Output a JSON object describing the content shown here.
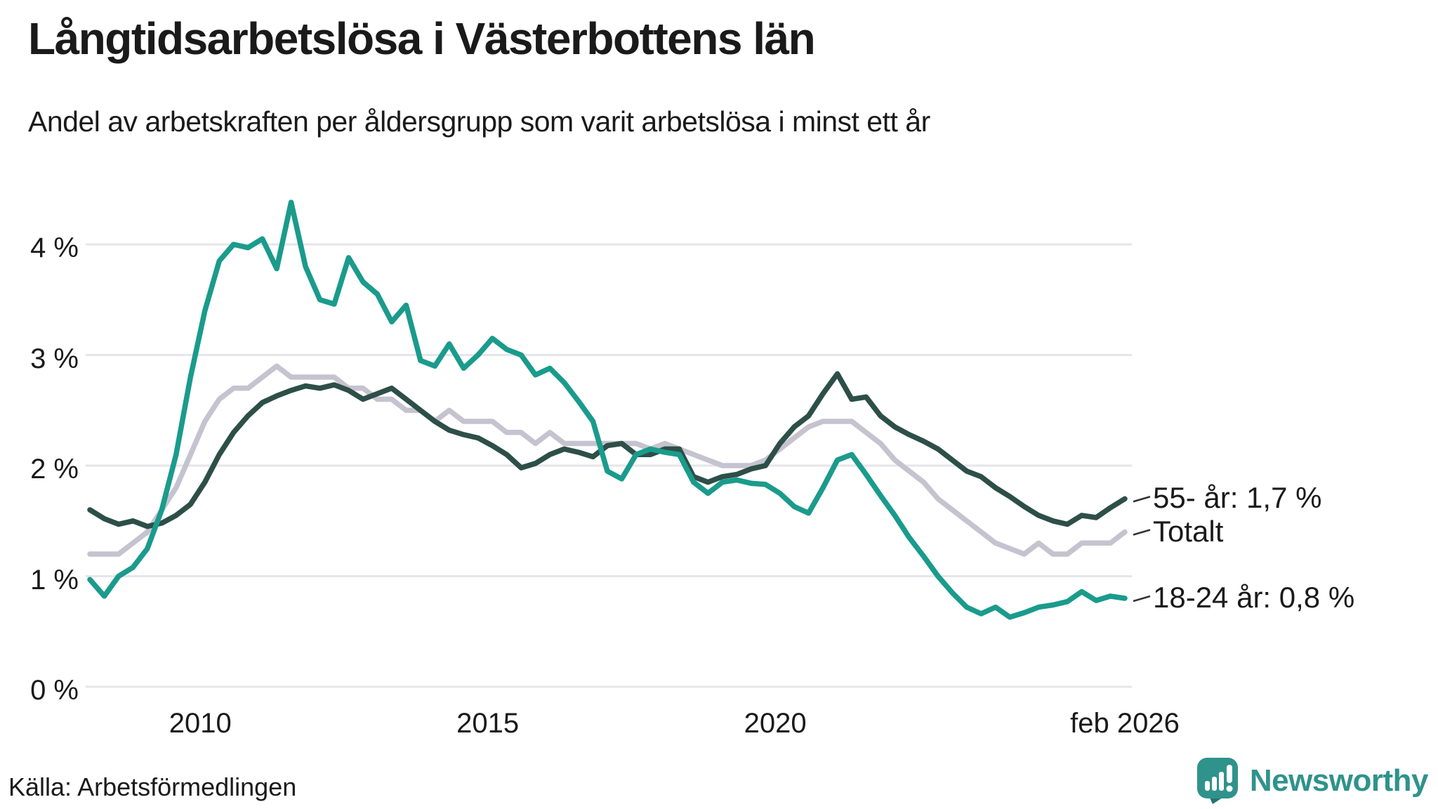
{
  "header": {
    "title": "Långtidsarbetslösa i Västerbottens län",
    "subtitle": "Andel av arbetskraften per åldersgrupp som varit arbetslösa i minst ett år"
  },
  "footer": {
    "source": "Källa: Arbetsförmedlingen",
    "brand": "Newsworthy"
  },
  "colors": {
    "background": "#ffffff",
    "text": "#1a1a1a",
    "gridline": "#e6e5ea",
    "leader": "#333333",
    "series_55": "#2d4f48",
    "series_totalt": "#c6c3d0",
    "series_18_24": "#1a9b8c",
    "brand_teal": "#2f938b"
  },
  "chart_data": {
    "type": "line",
    "title": "Långtidsarbetslösa i Västerbottens län",
    "subtitle": "Andel av arbetskraften per åldersgrupp som varit arbetslösa i minst ett år",
    "xlabel": "",
    "ylabel": "",
    "grid": true,
    "legend_position": "end-of-line-labels-right",
    "x_domain": [
      2008.08,
      2026.08
    ],
    "x_step": 0.25,
    "ylim": [
      0,
      4.6
    ],
    "yticks": [
      {
        "v": 0,
        "label": "0 %"
      },
      {
        "v": 1,
        "label": "1 %"
      },
      {
        "v": 2,
        "label": "2 %"
      },
      {
        "v": 3,
        "label": "3 %"
      },
      {
        "v": 4,
        "label": "4 %"
      }
    ],
    "xticks": [
      {
        "t": 2010,
        "label": "2010"
      },
      {
        "t": 2015,
        "label": "2015"
      },
      {
        "t": 2020,
        "label": "2020"
      },
      {
        "t": 2026.08,
        "label": "feb 2026"
      }
    ],
    "series": [
      {
        "name": "Totalt",
        "end_label": "Totalt",
        "end_value": 1.4,
        "color": "#c6c3d0",
        "values": [
          1.2,
          1.2,
          1.2,
          1.3,
          1.4,
          1.6,
          1.8,
          2.1,
          2.4,
          2.6,
          2.7,
          2.7,
          2.8,
          2.9,
          2.8,
          2.8,
          2.8,
          2.8,
          2.7,
          2.7,
          2.6,
          2.6,
          2.5,
          2.5,
          2.4,
          2.5,
          2.4,
          2.4,
          2.4,
          2.3,
          2.3,
          2.2,
          2.3,
          2.2,
          2.2,
          2.2,
          2.2,
          2.2,
          2.2,
          2.15,
          2.2,
          2.15,
          2.1,
          2.05,
          2.0,
          2.0,
          2.0,
          2.05,
          2.15,
          2.25,
          2.35,
          2.4,
          2.4,
          2.4,
          2.3,
          2.2,
          2.05,
          1.95,
          1.85,
          1.7,
          1.6,
          1.5,
          1.4,
          1.3,
          1.25,
          1.2,
          1.3,
          1.2,
          1.2,
          1.3,
          1.3,
          1.3,
          1.4
        ]
      },
      {
        "name": "55- år",
        "end_label": "55- år: 1,7 %",
        "end_value": 1.7,
        "color": "#2d4f48",
        "values": [
          1.6,
          1.52,
          1.47,
          1.5,
          1.45,
          1.48,
          1.55,
          1.65,
          1.85,
          2.1,
          2.3,
          2.45,
          2.57,
          2.63,
          2.68,
          2.72,
          2.7,
          2.73,
          2.68,
          2.6,
          2.65,
          2.7,
          2.6,
          2.5,
          2.4,
          2.32,
          2.28,
          2.25,
          2.18,
          2.1,
          1.98,
          2.02,
          2.1,
          2.15,
          2.12,
          2.08,
          2.18,
          2.2,
          2.1,
          2.1,
          2.15,
          2.15,
          1.9,
          1.85,
          1.9,
          1.92,
          1.97,
          2.0,
          2.2,
          2.35,
          2.45,
          2.65,
          2.83,
          2.6,
          2.62,
          2.45,
          2.35,
          2.28,
          2.22,
          2.15,
          2.05,
          1.95,
          1.9,
          1.8,
          1.72,
          1.63,
          1.55,
          1.5,
          1.47,
          1.55,
          1.53,
          1.62,
          1.7
        ]
      },
      {
        "name": "18-24 år",
        "end_label": "18-24 år: 0,8 %",
        "end_value": 0.8,
        "color": "#1a9b8c",
        "values": [
          0.97,
          0.82,
          1.0,
          1.08,
          1.25,
          1.6,
          2.1,
          2.8,
          3.4,
          3.85,
          4.0,
          3.97,
          4.05,
          3.78,
          4.38,
          3.8,
          3.5,
          3.46,
          3.88,
          3.66,
          3.55,
          3.3,
          3.45,
          2.95,
          2.9,
          3.1,
          2.88,
          3.0,
          3.15,
          3.05,
          3.0,
          2.82,
          2.88,
          2.75,
          2.58,
          2.4,
          1.95,
          1.88,
          2.1,
          2.15,
          2.12,
          2.1,
          1.85,
          1.75,
          1.85,
          1.87,
          1.84,
          1.83,
          1.75,
          1.63,
          1.57,
          1.8,
          2.05,
          2.1,
          1.92,
          1.73,
          1.55,
          1.35,
          1.18,
          1.0,
          0.85,
          0.72,
          0.66,
          0.72,
          0.63,
          0.67,
          0.72,
          0.74,
          0.77,
          0.86,
          0.78,
          0.82,
          0.8
        ]
      }
    ]
  }
}
